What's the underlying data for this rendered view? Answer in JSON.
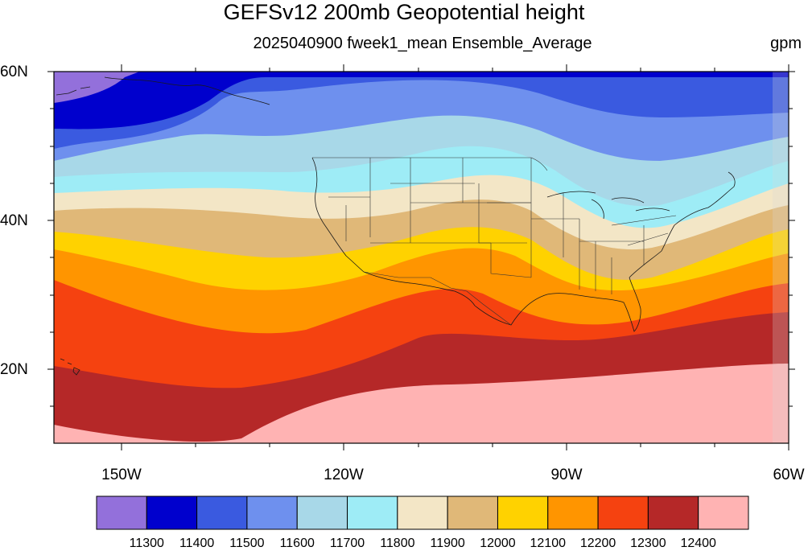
{
  "title": "GEFSv12 200mb Geopotential height",
  "subtitle": "2025040900 fweek1_mean Ensemble_Average",
  "units": "gpm",
  "map": {
    "projection": "cylindrical equidistant",
    "lat_range": [
      10,
      60
    ],
    "lon_range": [
      -160,
      -60
    ],
    "lat_ticks": [
      {
        "lat": 60,
        "label": "60N"
      },
      {
        "lat": 40,
        "label": "40N"
      },
      {
        "lat": 20,
        "label": "20N"
      }
    ],
    "lon_ticks": [
      {
        "lon": -150,
        "label": "150W"
      },
      {
        "lon": -120,
        "label": "120W"
      },
      {
        "lon": -90,
        "label": "90W"
      },
      {
        "lon": -60,
        "label": "60W"
      }
    ]
  },
  "colorbar": {
    "levels": [
      "11300",
      "11400",
      "11500",
      "11600",
      "11700",
      "11800",
      "11900",
      "12000",
      "12100",
      "12200",
      "12300",
      "12400"
    ],
    "colors": [
      "#9370db",
      "#0000cd",
      "#3a5ae0",
      "#6e90ee",
      "#a8d8e8",
      "#9eecf6",
      "#f3e6c6",
      "#e0b878",
      "#ffd200",
      "#ff9500",
      "#f54210",
      "#b52828",
      "#ffb3b3"
    ]
  }
}
